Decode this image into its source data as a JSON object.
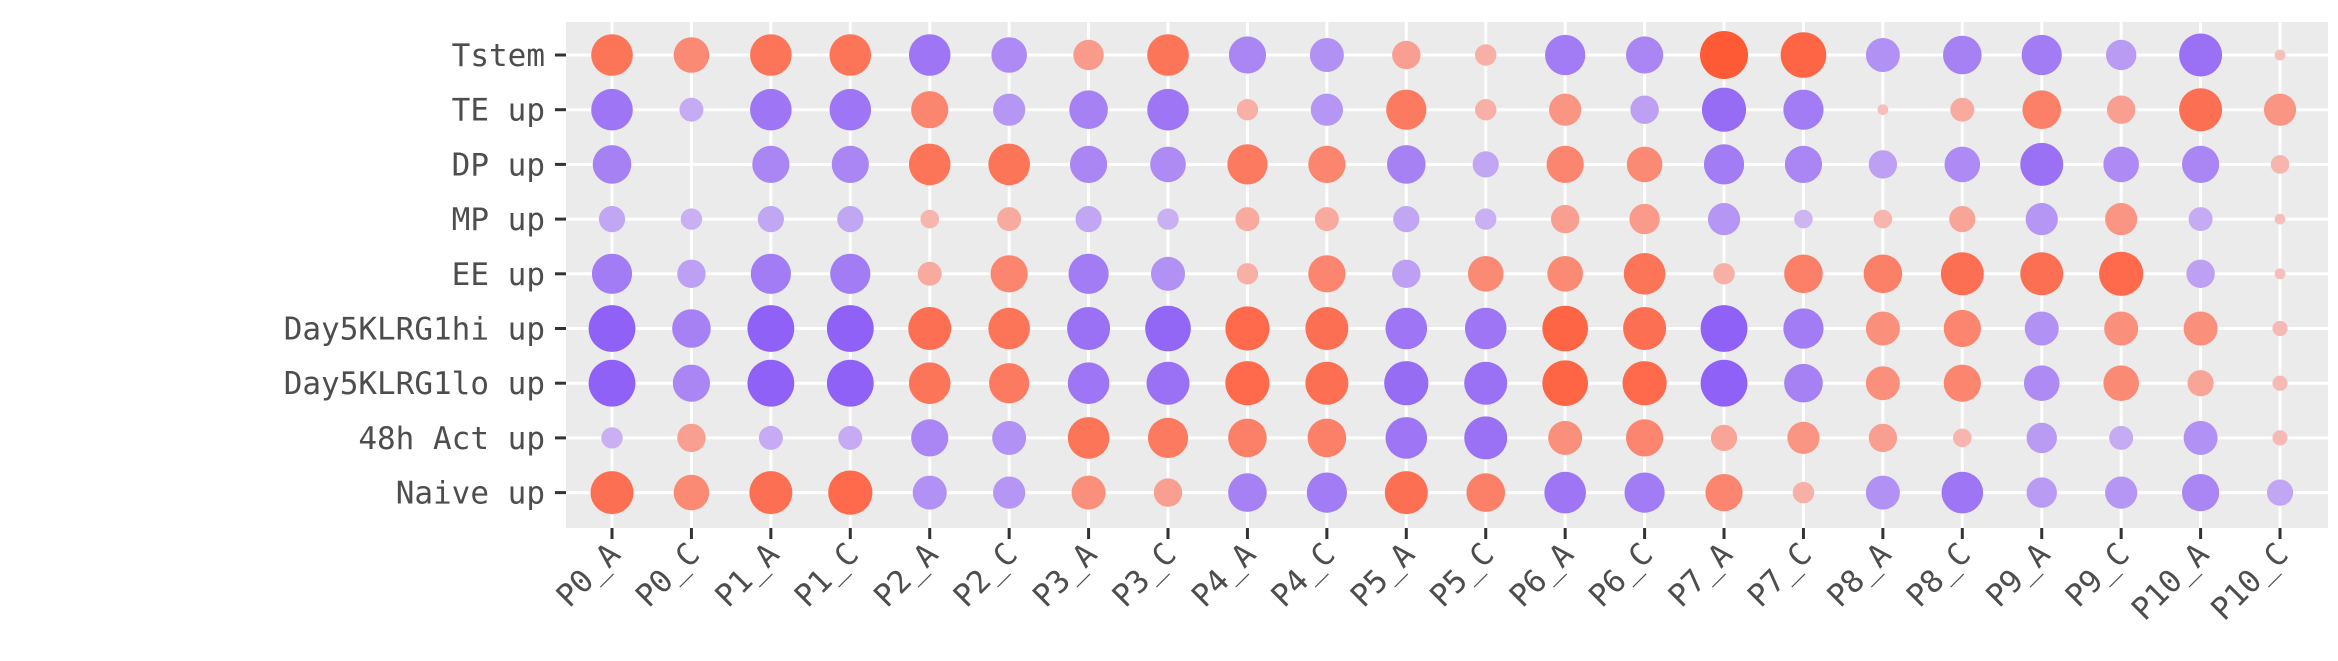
{
  "chart_data": {
    "type": "bubble-heatmap",
    "title": "",
    "xlabel": "",
    "ylabel": "",
    "grid": true,
    "legend": "none",
    "x": [
      "P0_A",
      "P0_C",
      "P1_A",
      "P1_C",
      "P2_A",
      "P2_C",
      "P3_A",
      "P3_C",
      "P4_A",
      "P4_C",
      "P5_A",
      "P5_C",
      "P6_A",
      "P6_C",
      "P7_A",
      "P7_C",
      "P8_A",
      "P8_C",
      "P9_A",
      "P9_C",
      "P10_A",
      "P10_C"
    ],
    "y": [
      "Tstem",
      "TE up",
      "DP up",
      "MP up",
      "EE up",
      "Day5KLRG1hi up",
      "Day5KLRG1lo up",
      "48h Act up",
      "Naive up"
    ],
    "colors": {
      "up": "#ff5a36",
      "down": "#8b5cf6",
      "neutral": "#f2e8f0",
      "panel": "#ebebeb",
      "gridline": "#ffffff",
      "tick": "#333333"
    },
    "note_values": "Each cell value is a signed score in [-1,1]: sign gives color (orange positive, purple negative), magnitude gives bubble size and saturation.",
    "values": [
      [
        0.75,
        0.55,
        0.75,
        0.75,
        -0.75,
        -0.55,
        0.4,
        0.75,
        -0.6,
        -0.5,
        0.35,
        0.2,
        -0.7,
        -0.6,
        1.0,
        0.9,
        -0.5,
        -0.65,
        -0.7,
        -0.4,
        -0.8,
        0.05
      ],
      [
        -0.75,
        -0.25,
        -0.75,
        -0.75,
        0.6,
        -0.45,
        -0.65,
        -0.75,
        0.2,
        -0.45,
        0.7,
        0.2,
        0.45,
        -0.35,
        -0.85,
        -0.7,
        0.05,
        0.25,
        0.65,
        0.35,
        0.8,
        0.45
      ],
      [
        -0.65,
        0.0,
        -0.6,
        -0.6,
        0.75,
        0.75,
        -0.6,
        -0.55,
        0.7,
        0.6,
        -0.65,
        -0.3,
        0.6,
        0.55,
        -0.7,
        -0.6,
        -0.35,
        -0.55,
        -0.8,
        -0.55,
        -0.6,
        0.15
      ],
      [
        -0.3,
        -0.2,
        -0.3,
        -0.3,
        0.15,
        0.25,
        -0.3,
        -0.2,
        0.25,
        0.25,
        -0.3,
        -0.2,
        0.35,
        0.4,
        -0.45,
        -0.15,
        0.15,
        0.3,
        -0.45,
        0.45,
        -0.25,
        0.05
      ],
      [
        -0.7,
        -0.35,
        -0.7,
        -0.7,
        0.25,
        0.6,
        -0.7,
        -0.5,
        0.2,
        0.6,
        -0.35,
        0.55,
        0.55,
        0.75,
        0.2,
        0.65,
        0.65,
        0.8,
        0.8,
        0.85,
        -0.35,
        0.05
      ],
      [
        -0.95,
        -0.65,
        -0.95,
        -0.95,
        0.8,
        0.75,
        -0.8,
        -0.9,
        0.85,
        0.8,
        -0.75,
        -0.75,
        0.9,
        0.8,
        -0.95,
        -0.7,
        0.5,
        0.6,
        -0.5,
        0.5,
        0.5,
        0.1
      ],
      [
        -0.95,
        -0.6,
        -0.95,
        -0.95,
        0.75,
        0.7,
        -0.75,
        -0.8,
        0.85,
        0.8,
        -0.85,
        -0.8,
        0.9,
        0.85,
        -0.95,
        -0.65,
        0.5,
        0.6,
        -0.55,
        0.55,
        0.3,
        0.1
      ],
      [
        -0.2,
        0.35,
        -0.25,
        -0.25,
        -0.6,
        -0.5,
        0.75,
        0.7,
        0.65,
        0.65,
        -0.75,
        -0.8,
        0.5,
        0.6,
        0.3,
        0.45,
        0.35,
        0.15,
        -0.4,
        -0.25,
        -0.5,
        0.1
      ],
      [
        0.8,
        0.55,
        0.8,
        0.85,
        -0.5,
        -0.45,
        0.5,
        0.35,
        -0.65,
        -0.7,
        0.8,
        0.65,
        -0.75,
        -0.7,
        0.6,
        0.2,
        -0.5,
        -0.75,
        -0.4,
        -0.45,
        -0.6,
        -0.3
      ]
    ]
  }
}
